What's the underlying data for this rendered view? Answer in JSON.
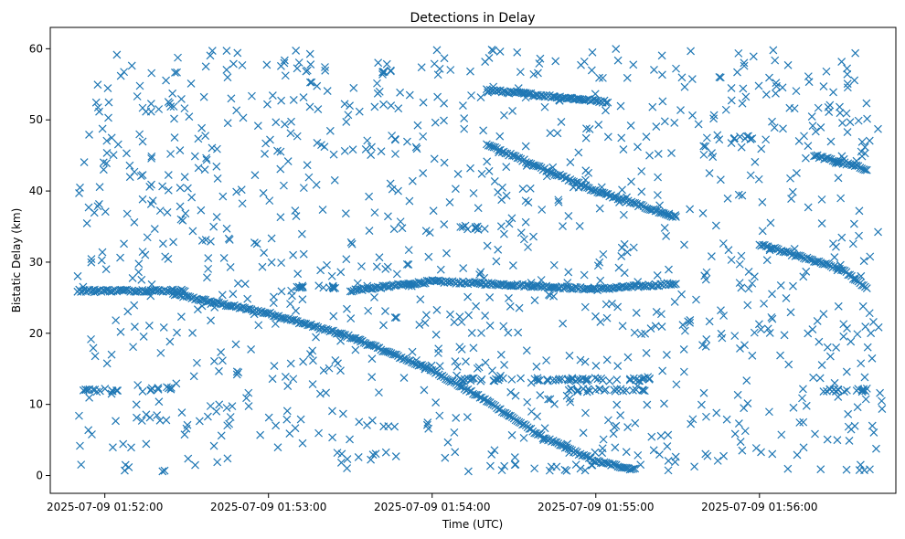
{
  "chart_data": {
    "type": "scatter",
    "title": "Detections in Delay",
    "xlabel": "Time (UTC)",
    "ylabel": "Bistatic Delay (km)",
    "marker": "x",
    "color": "#1f77b4",
    "grid": false,
    "legend": "none",
    "xaxis_kind": "time",
    "xlim": [
      "2025-07-09 01:51:40",
      "2025-07-09 01:56:50"
    ],
    "ylim": [
      -2.5,
      63
    ],
    "xticks": [
      "2025-07-09 01:52:00",
      "2025-07-09 01:53:00",
      "2025-07-09 01:54:00",
      "2025-07-09 01:55:00",
      "2025-07-09 01:56:00"
    ],
    "yticks": [
      0,
      10,
      20,
      30,
      40,
      50,
      60
    ],
    "series": [
      {
        "kind": "tracks",
        "tracks": [
          {
            "points": [
              [
                "2025-07-09 01:52:25",
                25.5
              ],
              [
                "2025-07-09 01:53:00",
                22.8
              ],
              [
                "2025-07-09 01:53:30",
                19.5
              ],
              [
                "2025-07-09 01:54:00",
                14.8
              ],
              [
                "2025-07-09 01:54:20",
                10.5
              ],
              [
                "2025-07-09 01:54:40",
                5.5
              ],
              [
                "2025-07-09 01:55:00",
                2.0
              ],
              [
                "2025-07-09 01:55:15",
                0.8
              ]
            ]
          },
          {
            "points": [
              [
                "2025-07-09 01:53:30",
                26.0
              ],
              [
                "2025-07-09 01:54:00",
                27.3
              ],
              [
                "2025-07-09 01:54:30",
                26.8
              ],
              [
                "2025-07-09 01:55:00",
                26.2
              ],
              [
                "2025-07-09 01:55:30",
                27.0
              ]
            ]
          },
          {
            "points": [
              [
                "2025-07-09 01:54:20",
                46.5
              ],
              [
                "2025-07-09 01:55:00",
                40.0
              ],
              [
                "2025-07-09 01:55:30",
                36.2
              ]
            ]
          },
          {
            "points": [
              [
                "2025-07-09 01:56:00",
                32.5
              ],
              [
                "2025-07-09 01:56:30",
                29.0
              ],
              [
                "2025-07-09 01:56:40",
                26.2
              ]
            ]
          },
          {
            "points": [
              [
                "2025-07-09 01:56:20",
                45.0
              ],
              [
                "2025-07-09 01:56:40",
                43.0
              ]
            ]
          },
          {
            "points": [
              [
                "2025-07-09 01:54:20",
                54.2
              ],
              [
                "2025-07-09 01:55:05",
                52.5
              ]
            ]
          },
          {
            "points": [
              [
                "2025-07-09 01:51:50",
                26.0
              ],
              [
                "2025-07-09 01:52:30",
                26.0
              ]
            ]
          }
        ]
      },
      {
        "kind": "clutter_clusters",
        "clusters": [
          {
            "x": [
              "2025-07-09 01:51:50",
              "2025-07-09 01:52:05"
            ],
            "y": 12.0
          },
          {
            "x": [
              "2025-07-09 01:52:15",
              "2025-07-09 01:52:25"
            ],
            "y": 12.2
          },
          {
            "x": [
              "2025-07-09 01:54:10",
              "2025-07-09 01:54:20"
            ],
            "y": 34.8
          },
          {
            "x": [
              "2025-07-09 01:54:10",
              "2025-07-09 01:55:20"
            ],
            "y": 13.5
          },
          {
            "x": [
              "2025-07-09 01:54:50",
              "2025-07-09 01:55:20"
            ],
            "y": 12.0
          },
          {
            "x": [
              "2025-07-09 01:55:50",
              "2025-07-09 01:56:00"
            ],
            "y": 47.5
          },
          {
            "x": [
              "2025-07-09 01:56:20",
              "2025-07-09 01:56:40"
            ],
            "y": 12.0
          },
          {
            "x": [
              "2025-07-09 01:53:40",
              "2025-07-09 01:53:45"
            ],
            "y": 56.8
          },
          {
            "x": [
              "2025-07-09 01:53:10",
              "2025-07-09 01:53:25"
            ],
            "y": 26.5
          }
        ]
      },
      {
        "kind": "background_clutter",
        "x_range": [
          "2025-07-09 01:51:50",
          "2025-07-09 01:56:45"
        ],
        "y_range": [
          0.5,
          60
        ]
      }
    ]
  }
}
